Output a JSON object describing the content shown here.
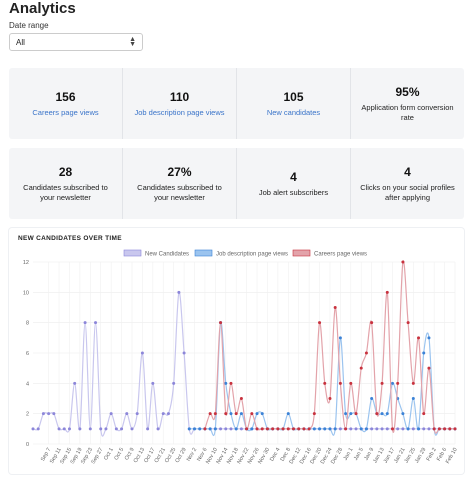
{
  "page": {
    "title": "Analytics"
  },
  "date_range": {
    "label": "Date range",
    "value": "All"
  },
  "stats_row1": [
    {
      "value": "156",
      "label": "Careers page views",
      "link": true
    },
    {
      "value": "110",
      "label": "Job description page views",
      "link": true
    },
    {
      "value": "105",
      "label": "New candidates",
      "link": true
    },
    {
      "value": "95%",
      "label": "Application form conversion rate",
      "link": false
    }
  ],
  "stats_row2": [
    {
      "value": "28",
      "label": "Candidates subscribed to your newsletter",
      "link": false
    },
    {
      "value": "27%",
      "label": "Candidates subscribed to your newsletter",
      "link": false
    },
    {
      "value": "4",
      "label": "Job alert subscribers",
      "link": false
    },
    {
      "value": "4",
      "label": "Clicks on your social profiles after applying",
      "link": false
    }
  ],
  "chart_data": {
    "type": "line",
    "title": "NEW CANDIDATES OVER TIME",
    "ylim": [
      0,
      12
    ],
    "yticks": [
      0,
      2,
      4,
      6,
      8,
      10,
      12
    ],
    "grid": true,
    "legend_placement": "top-center",
    "categories": [
      "Sep 1",
      "Sep 3",
      "Sep 5",
      "Sep 7",
      "Sep 9",
      "Sep 11",
      "Sep 13",
      "Sep 15",
      "Sep 17",
      "Sep 19",
      "Sep 21",
      "Sep 23",
      "Sep 25",
      "Sep 27",
      "Sep 29",
      "Oct 1",
      "Oct 3",
      "Oct 5",
      "Oct 7",
      "Oct 9",
      "Oct 11",
      "Oct 13",
      "Oct 15",
      "Oct 17",
      "Oct 19",
      "Oct 21",
      "Oct 23",
      "Oct 25",
      "Oct 27",
      "Oct 29",
      "Oct 31",
      "Nov 2",
      "Nov 4",
      "Nov 6",
      "Nov 8",
      "Nov 10",
      "Nov 12",
      "Nov 14",
      "Nov 16",
      "Nov 18",
      "Nov 20",
      "Nov 22",
      "Nov 24",
      "Nov 26",
      "Nov 28",
      "Nov 30",
      "Dec 2",
      "Dec 4",
      "Dec 6",
      "Dec 8",
      "Dec 10",
      "Dec 12",
      "Dec 14",
      "Dec 16",
      "Dec 18",
      "Dec 20",
      "Dec 22",
      "Dec 24",
      "Dec 26",
      "Dec 28",
      "Dec 30",
      "Jan 1",
      "Jan 3",
      "Jan 5",
      "Jan 7",
      "Jan 9",
      "Jan 11",
      "Jan 13",
      "Jan 15",
      "Jan 17",
      "Jan 19",
      "Jan 21",
      "Jan 23",
      "Jan 25",
      "Jan 27",
      "Jan 29",
      "Jan 31",
      "Feb 2",
      "Feb 4",
      "Feb 6",
      "Feb 8",
      "Feb 10"
    ],
    "xtick_labels": [
      "Sep 7",
      "Sep 11",
      "Sep 15",
      "Sep 19",
      "Sep 23",
      "Sep 27",
      "Oct 1",
      "Oct 5",
      "Oct 9",
      "Oct 13",
      "Oct 17",
      "Oct 21",
      "Oct 25",
      "Oct 29",
      "Nov 2",
      "Nov 6",
      "Nov 10",
      "Nov 14",
      "Nov 18",
      "Nov 22",
      "Nov 26",
      "Nov 30",
      "Dec 4",
      "Dec 8",
      "Dec 12",
      "Dec 16",
      "Dec 20",
      "Dec 24",
      "Dec 28",
      "Jan 1",
      "Jan 5",
      "Jan 9",
      "Jan 13",
      "Jan 17",
      "Jan 21",
      "Jan 25",
      "Jan 29",
      "Feb 2",
      "Feb 6",
      "Feb 10"
    ],
    "series": [
      {
        "name": "New Candidates",
        "color": "#c9c7ee",
        "marker": "#8c86d9",
        "values": [
          1,
          1,
          2,
          2,
          2,
          1,
          1,
          1,
          4,
          1,
          8,
          1,
          8,
          1,
          1,
          2,
          1,
          1,
          2,
          1,
          2,
          6,
          1,
          4,
          1,
          2,
          2,
          4,
          10,
          6,
          1,
          1,
          1,
          1,
          1,
          1,
          1,
          1,
          1,
          1,
          1,
          1,
          1,
          1,
          1,
          1,
          1,
          1,
          1,
          1,
          1,
          1,
          1,
          1,
          1,
          1,
          1,
          1,
          1,
          1,
          1,
          1,
          1,
          1,
          1,
          1,
          1,
          1,
          1,
          1,
          1,
          1,
          1,
          1,
          1,
          1,
          1,
          1,
          1,
          1,
          1,
          1
        ]
      },
      {
        "name": "Job description page views",
        "color": "#9bc4ef",
        "marker": "#3b82d6",
        "values": [
          0,
          0,
          0,
          0,
          0,
          0,
          0,
          0,
          0,
          0,
          0,
          0,
          0,
          0,
          0,
          0,
          0,
          0,
          0,
          0,
          0,
          0,
          0,
          0,
          0,
          0,
          0,
          0,
          0,
          0,
          1,
          1,
          1,
          1,
          1,
          1,
          8,
          4,
          2,
          1,
          2,
          1,
          1,
          2,
          2,
          1,
          1,
          1,
          1,
          2,
          1,
          1,
          1,
          1,
          1,
          1,
          1,
          1,
          1,
          7,
          2,
          2,
          2,
          1,
          1,
          3,
          2,
          2,
          2,
          4,
          3,
          2,
          1,
          3,
          1,
          6,
          7,
          1,
          1,
          1,
          1,
          1
        ]
      },
      {
        "name": "Careers page views",
        "color": "#e3a3aa",
        "marker": "#c8323e",
        "values": [
          0,
          0,
          0,
          0,
          0,
          0,
          0,
          0,
          0,
          0,
          0,
          0,
          0,
          0,
          0,
          0,
          0,
          0,
          0,
          0,
          0,
          0,
          0,
          0,
          0,
          0,
          0,
          0,
          0,
          0,
          0,
          0,
          0,
          1,
          2,
          2,
          8,
          2,
          4,
          2,
          3,
          1,
          2,
          1,
          1,
          1,
          1,
          1,
          1,
          1,
          1,
          1,
          1,
          1,
          2,
          8,
          4,
          3,
          9,
          4,
          1,
          4,
          2,
          5,
          6,
          8,
          2,
          4,
          10,
          1,
          4,
          12,
          8,
          4,
          7,
          2,
          5,
          1,
          1,
          1,
          1,
          1
        ]
      }
    ]
  }
}
